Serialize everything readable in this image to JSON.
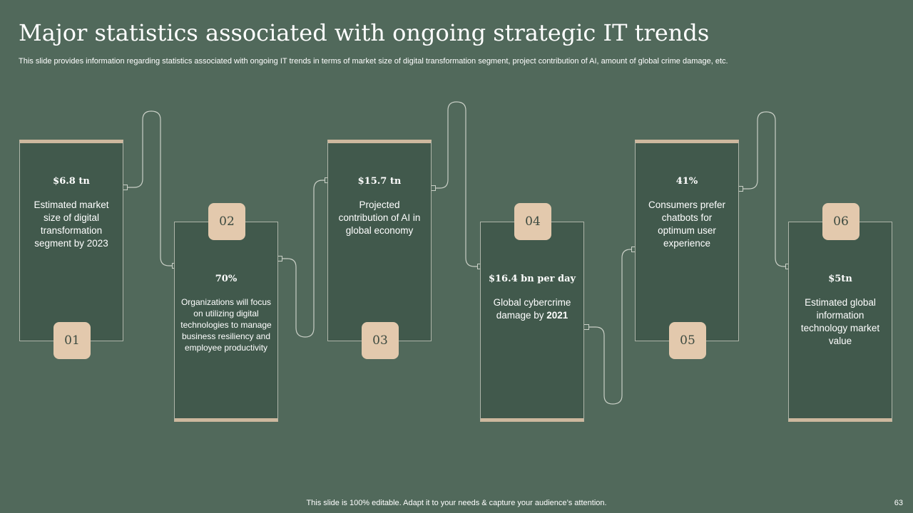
{
  "slide": {
    "title": "Major statistics associated with ongoing strategic IT trends",
    "subtitle": "This slide provides information regarding statistics associated with ongoing IT trends in terms of market size of digital transformation segment, project contribution of AI,    amount of global crime damage, etc.",
    "footer": "This slide is 100% editable. Adapt it to your needs & capture your audience’s attention.",
    "page_number": "63"
  },
  "colors": {
    "background": "#51695b",
    "card": "#41594c",
    "accent": "#cdb89e",
    "badge": "#e3c9ad"
  },
  "cards": [
    {
      "number": "01",
      "stat": "$6.8 tn",
      "description": "Estimated market size of digital transformation segment by 2023"
    },
    {
      "number": "02",
      "stat": "70%",
      "description": "Organizations will focus on utilizing digital technologies to manage business resiliency and employee productivity"
    },
    {
      "number": "03",
      "stat": "$15.7 tn",
      "description": "Projected contribution of AI in global economy"
    },
    {
      "number": "04",
      "stat": "$16.4 bn per day",
      "description_prefix": "Global cybercrime damage by ",
      "description_bold": "2021"
    },
    {
      "number": "05",
      "stat": "41%",
      "description": "Consumers prefer chatbots for optimum user experience"
    },
    {
      "number": "06",
      "stat": "$5tn",
      "description": "Estimated global information technology market value"
    }
  ]
}
